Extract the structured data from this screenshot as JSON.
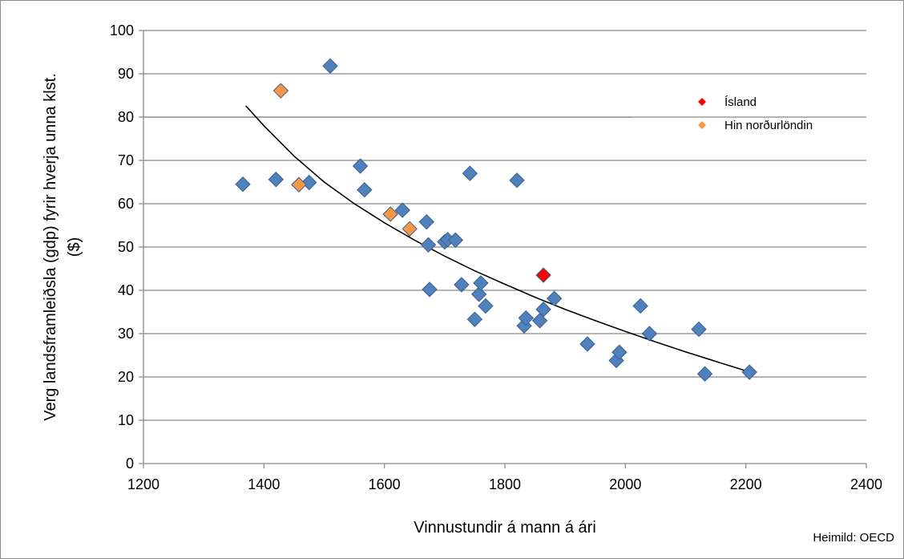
{
  "chart_data": {
    "type": "scatter",
    "xlabel": "Vinnustundir á mann á ári",
    "ylabel_lines": [
      "Verg landsframleiðsla (gdp) fyrir hverja unna klst.",
      "($)"
    ],
    "source": "Heimild: OECD",
    "xlim": [
      1200,
      2400
    ],
    "ylim": [
      0,
      100
    ],
    "x_ticks": [
      1200,
      1400,
      1600,
      1800,
      2000,
      2200,
      2400
    ],
    "y_ticks": [
      0,
      10,
      20,
      30,
      40,
      50,
      60,
      70,
      80,
      90,
      100
    ],
    "grid": "horizontal",
    "legend_position": "top-right",
    "legend": [
      {
        "label": "Ísland",
        "color": "#ff0000"
      },
      {
        "label": "Hin norðurlöndin",
        "color": "#f79646"
      }
    ],
    "colors": {
      "default": "#4f81bd",
      "default_edge": "#385d8a",
      "iceland": "#ff0000",
      "nordic": "#f79646",
      "trend": "#000000",
      "grid": "#868686"
    },
    "series": [
      {
        "group": "other",
        "points": [
          [
            1365,
            64.5
          ],
          [
            1420,
            65.6
          ],
          [
            1475,
            64.9
          ],
          [
            1510,
            91.8
          ],
          [
            1560,
            68.7
          ],
          [
            1567,
            63.2
          ],
          [
            1630,
            58.5
          ],
          [
            1670,
            55.8
          ],
          [
            1673,
            50.5
          ],
          [
            1675,
            40.2
          ],
          [
            1700,
            51.2
          ],
          [
            1705,
            51.7
          ],
          [
            1718,
            51.6
          ],
          [
            1728,
            41.3
          ],
          [
            1742,
            67.0
          ],
          [
            1750,
            33.3
          ],
          [
            1757,
            39.1
          ],
          [
            1760,
            41.7
          ],
          [
            1768,
            36.4
          ],
          [
            1820,
            65.4
          ],
          [
            1832,
            31.8
          ],
          [
            1835,
            33.6
          ],
          [
            1858,
            33.0
          ],
          [
            1864,
            35.6
          ],
          [
            1882,
            38.1
          ],
          [
            1937,
            27.6
          ],
          [
            1985,
            23.8
          ],
          [
            1990,
            25.7
          ],
          [
            2025,
            36.4
          ],
          [
            2040,
            30.0
          ],
          [
            2122,
            31.0
          ],
          [
            2132,
            20.7
          ],
          [
            2206,
            21.1
          ]
        ]
      },
      {
        "group": "nordic",
        "name": "Hin norðurlöndin",
        "points": [
          [
            1428,
            86.1
          ],
          [
            1458,
            64.4
          ],
          [
            1610,
            57.6
          ],
          [
            1642,
            54.2
          ]
        ]
      },
      {
        "group": "iceland",
        "name": "Ísland",
        "points": [
          [
            1864,
            43.5
          ]
        ]
      }
    ],
    "trendline": {
      "x_range": [
        1370,
        2205
      ],
      "points": [
        [
          1370,
          82.6
        ],
        [
          1400,
          78.0
        ],
        [
          1450,
          71.0
        ],
        [
          1500,
          65.0
        ],
        [
          1550,
          60.0
        ],
        [
          1600,
          55.6
        ],
        [
          1650,
          51.6
        ],
        [
          1700,
          47.9
        ],
        [
          1750,
          44.5
        ],
        [
          1800,
          41.4
        ],
        [
          1850,
          38.4
        ],
        [
          1900,
          35.6
        ],
        [
          1950,
          33.0
        ],
        [
          2000,
          30.5
        ],
        [
          2050,
          28.1
        ],
        [
          2100,
          25.8
        ],
        [
          2150,
          23.6
        ],
        [
          2205,
          21.2
        ]
      ]
    }
  }
}
